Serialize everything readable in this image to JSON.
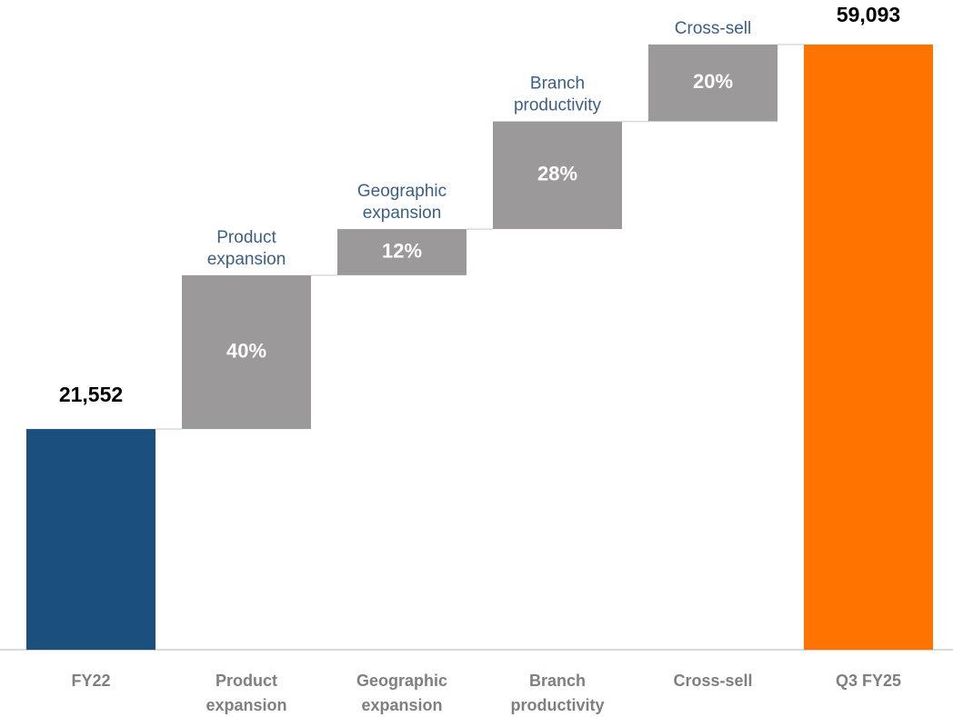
{
  "chart_data": {
    "type": "waterfall",
    "categories": [
      "FY22",
      "Product expansion",
      "Geographic expansion",
      "Branch productivity",
      "Cross-sell",
      "Q3 FY25"
    ],
    "start": {
      "value": 21552,
      "label": "21,552",
      "color": "#1b4f7c"
    },
    "end": {
      "value": 59093,
      "label": "59,093",
      "color": "#ff7300"
    },
    "steps": {
      "values": [
        40,
        12,
        28,
        20
      ],
      "value_labels": [
        "40%",
        "12%",
        "28%",
        "20%"
      ],
      "color": "#9b9999"
    }
  }
}
